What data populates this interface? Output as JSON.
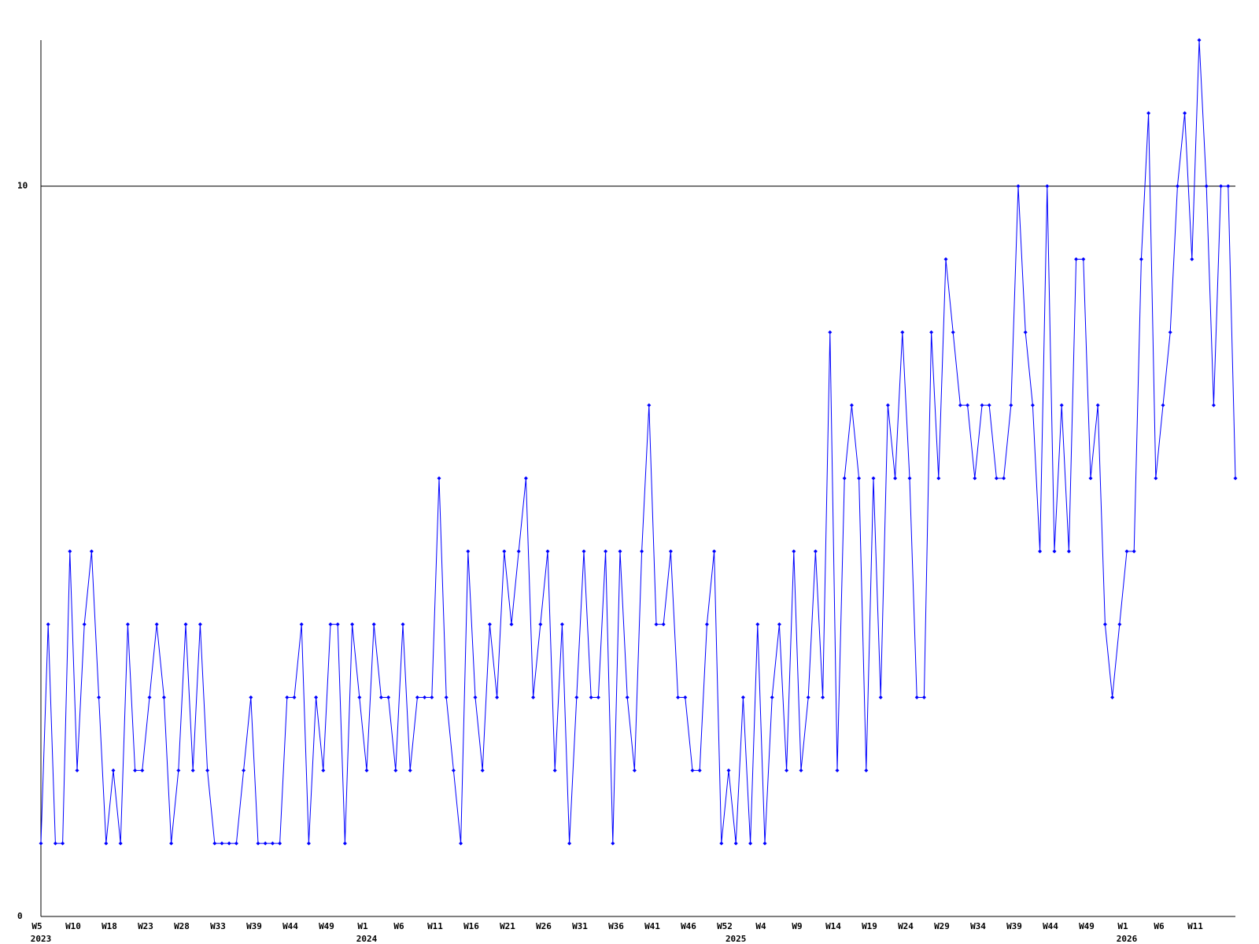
{
  "chart_data": {
    "type": "line",
    "categories": [
      "W5",
      null,
      null,
      null,
      null,
      "W10",
      null,
      null,
      null,
      null,
      "W18",
      null,
      null,
      null,
      null,
      "W23",
      null,
      null,
      null,
      null,
      "W28",
      null,
      null,
      null,
      null,
      "W33",
      null,
      null,
      null,
      null,
      "W39",
      null,
      null,
      null,
      null,
      "W44",
      null,
      null,
      null,
      null,
      "W49",
      null,
      null,
      null,
      null,
      "W1",
      null,
      null,
      null,
      null,
      "W6",
      null,
      null,
      null,
      null,
      "W11",
      null,
      null,
      null,
      null,
      "W16",
      null,
      null,
      null,
      null,
      "W21",
      null,
      null,
      null,
      null,
      "W26",
      null,
      null,
      null,
      null,
      "W31",
      null,
      null,
      null,
      null,
      "W36",
      null,
      null,
      null,
      null,
      "W41",
      null,
      null,
      null,
      null,
      "W46",
      null,
      null,
      null,
      null,
      "W52",
      null,
      null,
      null,
      null,
      "W4",
      null,
      null,
      null,
      null,
      "W9",
      null,
      null,
      null,
      null,
      "W14",
      null,
      null,
      null,
      null,
      "W19",
      null,
      null,
      null,
      null,
      "W24",
      null,
      null,
      null,
      null,
      "W29",
      null,
      null,
      null,
      null,
      "W34",
      null,
      null,
      null,
      null,
      "W39",
      null,
      null,
      null,
      null,
      "W44",
      null,
      null,
      null,
      null,
      "W49",
      null,
      null,
      null,
      null,
      "W1",
      null,
      null,
      null,
      null,
      "W6",
      null,
      null,
      null,
      null,
      "W11",
      null,
      null,
      null,
      null,
      null
    ],
    "year_labels": [
      "2023",
      null,
      null,
      null,
      null,
      null,
      null,
      null,
      null,
      null,
      null,
      null,
      null,
      null,
      null,
      null,
      null,
      null,
      null,
      null,
      null,
      null,
      null,
      null,
      null,
      null,
      null,
      null,
      null,
      null,
      null,
      null,
      null,
      null,
      null,
      null,
      null,
      null,
      null,
      null,
      null,
      null,
      null,
      null,
      null,
      "2024",
      null,
      null,
      null,
      null,
      null,
      null,
      null,
      null,
      null,
      null,
      null,
      null,
      null,
      null,
      null,
      null,
      null,
      null,
      null,
      null,
      null,
      null,
      null,
      null,
      null,
      null,
      null,
      null,
      null,
      null,
      null,
      null,
      null,
      null,
      null,
      null,
      null,
      null,
      null,
      null,
      null,
      null,
      null,
      null,
      null,
      null,
      null,
      null,
      null,
      null,
      "2025",
      null,
      null,
      null,
      null,
      null,
      null,
      null,
      null,
      null,
      null,
      null,
      null,
      null,
      null,
      null,
      null,
      null,
      null,
      null,
      null,
      null,
      null,
      null,
      null,
      null,
      null,
      null,
      null,
      null,
      null,
      null,
      null,
      null,
      null,
      null,
      null,
      null,
      null,
      null,
      null,
      null,
      null,
      null,
      null,
      null,
      null,
      null,
      null,
      null,
      null,
      null,
      null,
      null,
      "2026",
      null,
      null,
      null,
      null,
      null,
      null,
      null,
      null,
      null,
      null,
      null,
      null,
      null,
      null,
      null
    ],
    "series": [
      {
        "color": "#0000ff",
        "values": [
          1,
          4,
          1,
          1,
          5,
          2,
          4,
          5,
          3,
          1,
          2,
          1,
          4,
          2,
          2,
          3,
          4,
          3,
          1,
          2,
          4,
          2,
          4,
          2,
          1,
          1,
          1,
          1,
          2,
          3,
          1,
          1,
          1,
          1,
          3,
          3,
          4,
          1,
          3,
          2,
          4,
          4,
          1,
          4,
          3,
          2,
          4,
          3,
          3,
          2,
          4,
          2,
          3,
          3,
          3,
          6,
          3,
          2,
          1,
          5,
          3,
          2,
          4,
          3,
          5,
          4,
          5,
          6,
          3,
          4,
          5,
          2,
          4,
          1,
          3,
          5,
          3,
          3,
          5,
          1,
          5,
          3,
          2,
          5,
          7,
          4,
          4,
          5,
          3,
          3,
          2,
          2,
          4,
          5,
          1,
          2,
          1,
          3,
          1,
          4,
          1,
          3,
          4,
          2,
          5,
          2,
          3,
          5,
          3,
          8,
          2,
          6,
          7,
          6,
          2,
          6,
          3,
          7,
          6,
          8,
          6,
          3,
          3,
          8,
          6,
          9,
          8,
          7,
          7,
          6,
          7,
          7,
          6,
          6,
          7,
          10,
          8,
          7,
          5,
          10,
          5,
          7,
          5,
          9,
          9,
          6,
          7,
          4,
          3,
          4,
          5,
          5,
          9,
          11,
          6,
          7,
          8,
          10,
          11,
          9,
          12,
          10,
          7,
          10,
          10,
          6
        ]
      }
    ],
    "ylim": [
      0,
      12
    ],
    "yticks": [
      0,
      10
    ],
    "grid": true,
    "grid_color": "#000000"
  }
}
